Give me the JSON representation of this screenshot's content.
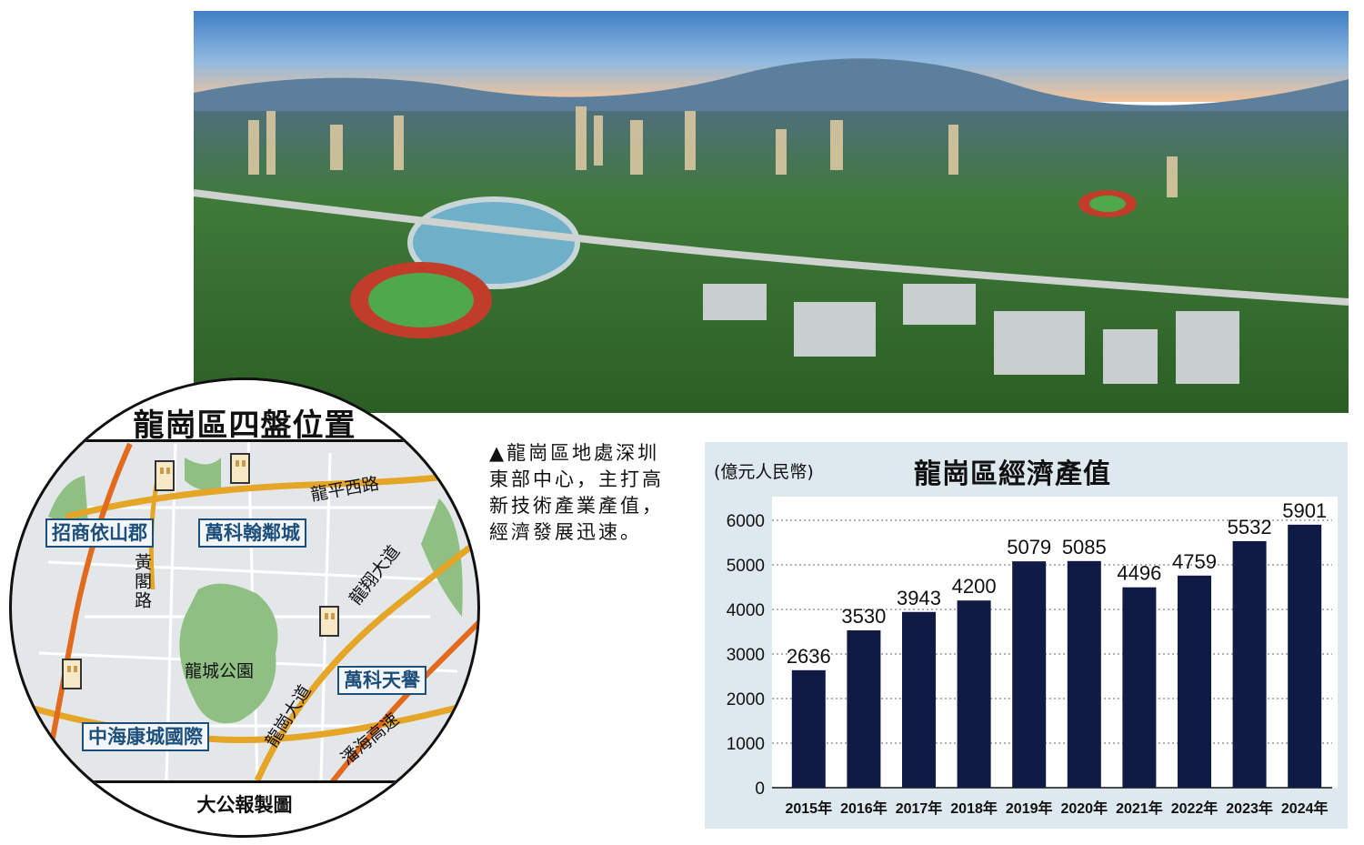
{
  "map": {
    "title": "龍崗區四盤位置",
    "credit": "大公報製圖",
    "pois": [
      "招商依山郡",
      "萬科翰鄰城",
      "萬科天譽",
      "中海康城國際"
    ],
    "roads": {
      "longping_west": "龍平西路",
      "longxiang": "龍翔大道",
      "huangge": "黃閣路",
      "longgang": "龍崗大道",
      "shuihai": "潘海高速"
    },
    "park": "龍城公園",
    "colors": {
      "road_major": "#e5a526",
      "road_orange": "#e26a1c",
      "park": "#8fbf82",
      "label_border": "#1d4f7a"
    }
  },
  "caption": "▲龍崗區地處深圳東部中心，主打高新技術產業產值，經濟發展迅速。",
  "chart": {
    "title": "龍崗區經濟產值",
    "unit": "(億元人民幣)",
    "bar_color": "#0f1a45",
    "background": "#dde9ee"
  },
  "chart_data": {
    "type": "bar",
    "title": "龍崗區經濟產值",
    "ylabel": "(億元人民幣)",
    "xlabel": "",
    "categories": [
      "2015年",
      "2016年",
      "2017年",
      "2018年",
      "2019年",
      "2020年",
      "2021年",
      "2022年",
      "2023年",
      "2024年"
    ],
    "values": [
      2636,
      3530,
      3943,
      4200,
      5079,
      5085,
      4496,
      4759,
      5532,
      5901
    ],
    "ylim": [
      0,
      6000
    ],
    "yticks": [
      0,
      1000,
      2000,
      3000,
      4000,
      5000,
      6000
    ],
    "grid": true
  }
}
